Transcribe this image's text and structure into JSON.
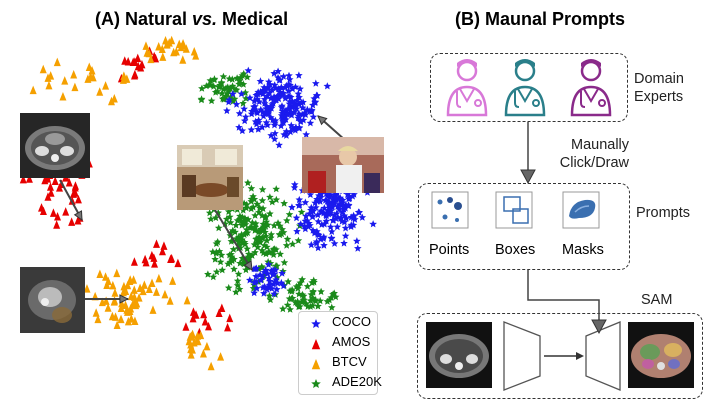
{
  "panel_a": {
    "title_prefix": "(A) Natural ",
    "title_vs": "vs.",
    "title_suffix": " Medical",
    "legend": [
      {
        "label": "COCO",
        "marker": "star",
        "color": "#1a1aee"
      },
      {
        "label": "AMOS",
        "marker": "triangle",
        "color": "#e60000"
      },
      {
        "label": "BTCV",
        "marker": "triangle",
        "color": "#f5a000"
      },
      {
        "label": "ADE20K",
        "marker": "star",
        "color": "#1a8a1a"
      }
    ]
  },
  "panel_b": {
    "title": "(B) Maunal Prompts",
    "experts_label_line1": "Domain",
    "experts_label_line2": "Experts",
    "action_line1": "Maunally",
    "action_line2": "Click/Draw",
    "prompts_label": "Prompts",
    "prompt_items": [
      "Points",
      "Boxes",
      "Masks"
    ],
    "sam_label": "SAM"
  },
  "colors": {
    "expert_pink": "#d878d8",
    "expert_teal": "#2a7f8a",
    "expert_purple": "#8a2a8a",
    "icon_blue": "#3a6fb0"
  }
}
